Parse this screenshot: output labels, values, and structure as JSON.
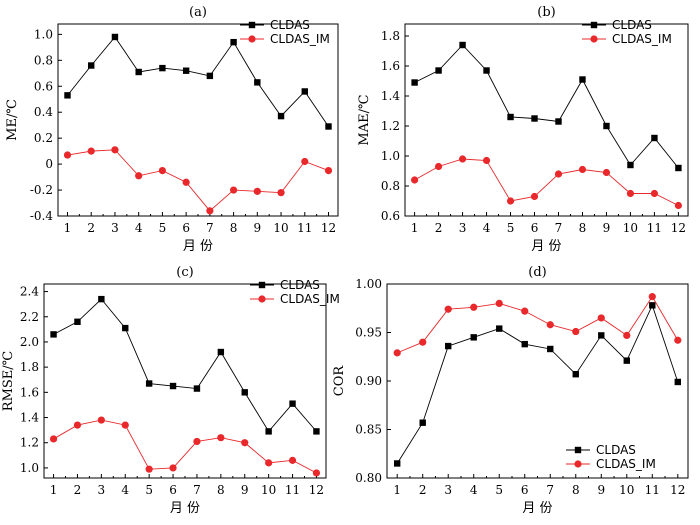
{
  "colors": {
    "CLDAS": "#000000",
    "CLDAS_IM": "#e8282b"
  },
  "chart_data": [
    {
      "panel": "(a)",
      "type": "line",
      "xlabel": "月 份",
      "ylabel": "ME/℃",
      "x": [
        1,
        2,
        3,
        4,
        5,
        6,
        7,
        8,
        9,
        10,
        11,
        12
      ],
      "xlim": [
        0.6,
        12.4
      ],
      "ylim": [
        -0.4,
        1.08
      ],
      "yticks": [
        -0.4,
        -0.2,
        0,
        0.2,
        0.4,
        0.6,
        0.8,
        1.0
      ],
      "ytick_labels": [
        "-0.4",
        "-0.2",
        "0",
        "0.2",
        "0.4",
        "0.6",
        "0.8",
        "1.0"
      ],
      "legend": "top-right",
      "series": [
        {
          "name": "CLDAS",
          "marker": "square",
          "values": [
            0.53,
            0.76,
            0.98,
            0.71,
            0.74,
            0.72,
            0.68,
            0.94,
            0.63,
            0.37,
            0.56,
            0.29
          ]
        },
        {
          "name": "CLDAS_IM",
          "marker": "circle",
          "values": [
            0.07,
            0.1,
            0.11,
            -0.09,
            -0.05,
            -0.14,
            -0.36,
            -0.2,
            -0.21,
            -0.22,
            0.02,
            -0.05
          ]
        }
      ]
    },
    {
      "panel": "(b)",
      "type": "line",
      "xlabel": "月 份",
      "ylabel": "MAE/℃",
      "x": [
        1,
        2,
        3,
        4,
        5,
        6,
        7,
        8,
        9,
        10,
        11,
        12
      ],
      "xlim": [
        0.6,
        12.4
      ],
      "ylim": [
        0.6,
        1.88
      ],
      "yticks": [
        0.6,
        0.8,
        1.0,
        1.2,
        1.4,
        1.6,
        1.8
      ],
      "ytick_labels": [
        "0.6",
        "0.8",
        "1.0",
        "1.2",
        "1.4",
        "1.6",
        "1.8"
      ],
      "legend": "top-right",
      "series": [
        {
          "name": "CLDAS",
          "marker": "square",
          "values": [
            1.49,
            1.57,
            1.74,
            1.57,
            1.26,
            1.25,
            1.23,
            1.51,
            1.2,
            0.94,
            1.12,
            0.92
          ]
        },
        {
          "name": "CLDAS_IM",
          "marker": "circle",
          "values": [
            0.84,
            0.93,
            0.98,
            0.97,
            0.7,
            0.73,
            0.88,
            0.91,
            0.89,
            0.75,
            0.75,
            0.67
          ]
        }
      ]
    },
    {
      "panel": "(c)",
      "type": "line",
      "xlabel": "月 份",
      "ylabel": "RMSE/℃",
      "x": [
        1,
        2,
        3,
        4,
        5,
        6,
        7,
        8,
        9,
        10,
        11,
        12
      ],
      "xlim": [
        0.6,
        12.4
      ],
      "ylim": [
        0.92,
        2.46
      ],
      "yticks": [
        1.0,
        1.2,
        1.4,
        1.6,
        1.8,
        2.0,
        2.2,
        2.4
      ],
      "ytick_labels": [
        "1.0",
        "1.2",
        "1.4",
        "1.6",
        "1.8",
        "2.0",
        "2.2",
        "2.4"
      ],
      "legend": "top-right",
      "series": [
        {
          "name": "CLDAS",
          "marker": "square",
          "values": [
            2.06,
            2.16,
            2.34,
            2.11,
            1.67,
            1.65,
            1.63,
            1.92,
            1.6,
            1.29,
            1.51,
            1.29
          ]
        },
        {
          "name": "CLDAS_IM",
          "marker": "circle",
          "values": [
            1.23,
            1.34,
            1.38,
            1.34,
            0.99,
            1.0,
            1.21,
            1.24,
            1.2,
            1.04,
            1.06,
            0.96
          ]
        }
      ]
    },
    {
      "panel": "(d)",
      "type": "line",
      "xlabel": "月 份",
      "ylabel": "COR",
      "x": [
        1,
        2,
        3,
        4,
        5,
        6,
        7,
        8,
        9,
        10,
        11,
        12
      ],
      "xlim": [
        0.6,
        12.4
      ],
      "ylim": [
        0.8,
        1.0
      ],
      "yticks": [
        0.8,
        0.85,
        0.9,
        0.95,
        1.0
      ],
      "ytick_labels": [
        "0.80",
        "0.85",
        "0.90",
        "0.95",
        "1.00"
      ],
      "legend": "bottom-right",
      "series": [
        {
          "name": "CLDAS",
          "marker": "square",
          "values": [
            0.815,
            0.857,
            0.936,
            0.945,
            0.954,
            0.938,
            0.933,
            0.907,
            0.947,
            0.921,
            0.978,
            0.899
          ]
        },
        {
          "name": "CLDAS_IM",
          "marker": "circle",
          "values": [
            0.929,
            0.94,
            0.974,
            0.976,
            0.98,
            0.972,
            0.958,
            0.951,
            0.965,
            0.947,
            0.987,
            0.942
          ]
        }
      ]
    }
  ]
}
